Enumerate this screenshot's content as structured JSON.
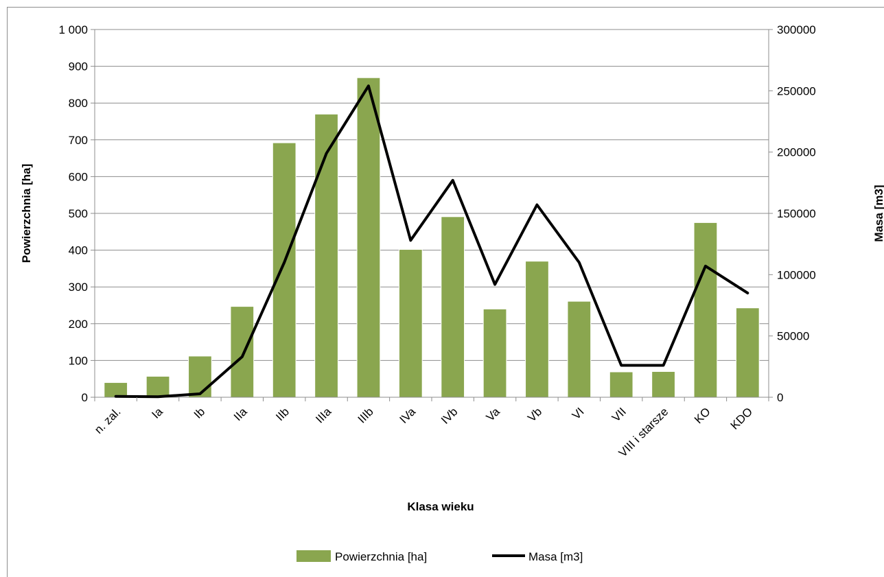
{
  "chart_data": {
    "type": "bar",
    "title": "",
    "xlabel": "Klasa wieku",
    "ylabel": "Powierzchnia [ha]",
    "y2label": "Masa [m3]",
    "categories": [
      "n. zal.",
      "Ia",
      "Ib",
      "IIa",
      "IIb",
      "IIIa",
      "IIIb",
      "IVa",
      "IVb",
      "Va",
      "Vb",
      "VI",
      "VII",
      "VIII i starsze",
      "KO",
      "KDO"
    ],
    "ylim": [
      0,
      1000
    ],
    "y2lim": [
      0,
      300000
    ],
    "y_ticks": [
      "0",
      "100",
      "200",
      "300",
      "400",
      "500",
      "600",
      "700",
      "800",
      "900",
      "1 000"
    ],
    "y2_ticks": [
      "0",
      "50000",
      "100000",
      "150000",
      "200000",
      "250000",
      "300000"
    ],
    "grid": true,
    "legend_position": "bottom",
    "series": [
      {
        "name": "Powierzchnia [ha]",
        "type": "bar",
        "axis": "left",
        "color": "#8aa64f",
        "values": [
          40,
          57,
          112,
          247,
          692,
          770,
          869,
          402,
          491,
          240,
          370,
          261,
          69,
          70,
          475,
          243
        ]
      },
      {
        "name": "Masa [m3]",
        "type": "line",
        "axis": "right",
        "color": "#000000",
        "values": [
          700,
          400,
          2800,
          33000,
          110000,
          199000,
          254000,
          128000,
          177000,
          92000,
          157000,
          110000,
          26000,
          26000,
          107000,
          85000
        ]
      }
    ]
  }
}
